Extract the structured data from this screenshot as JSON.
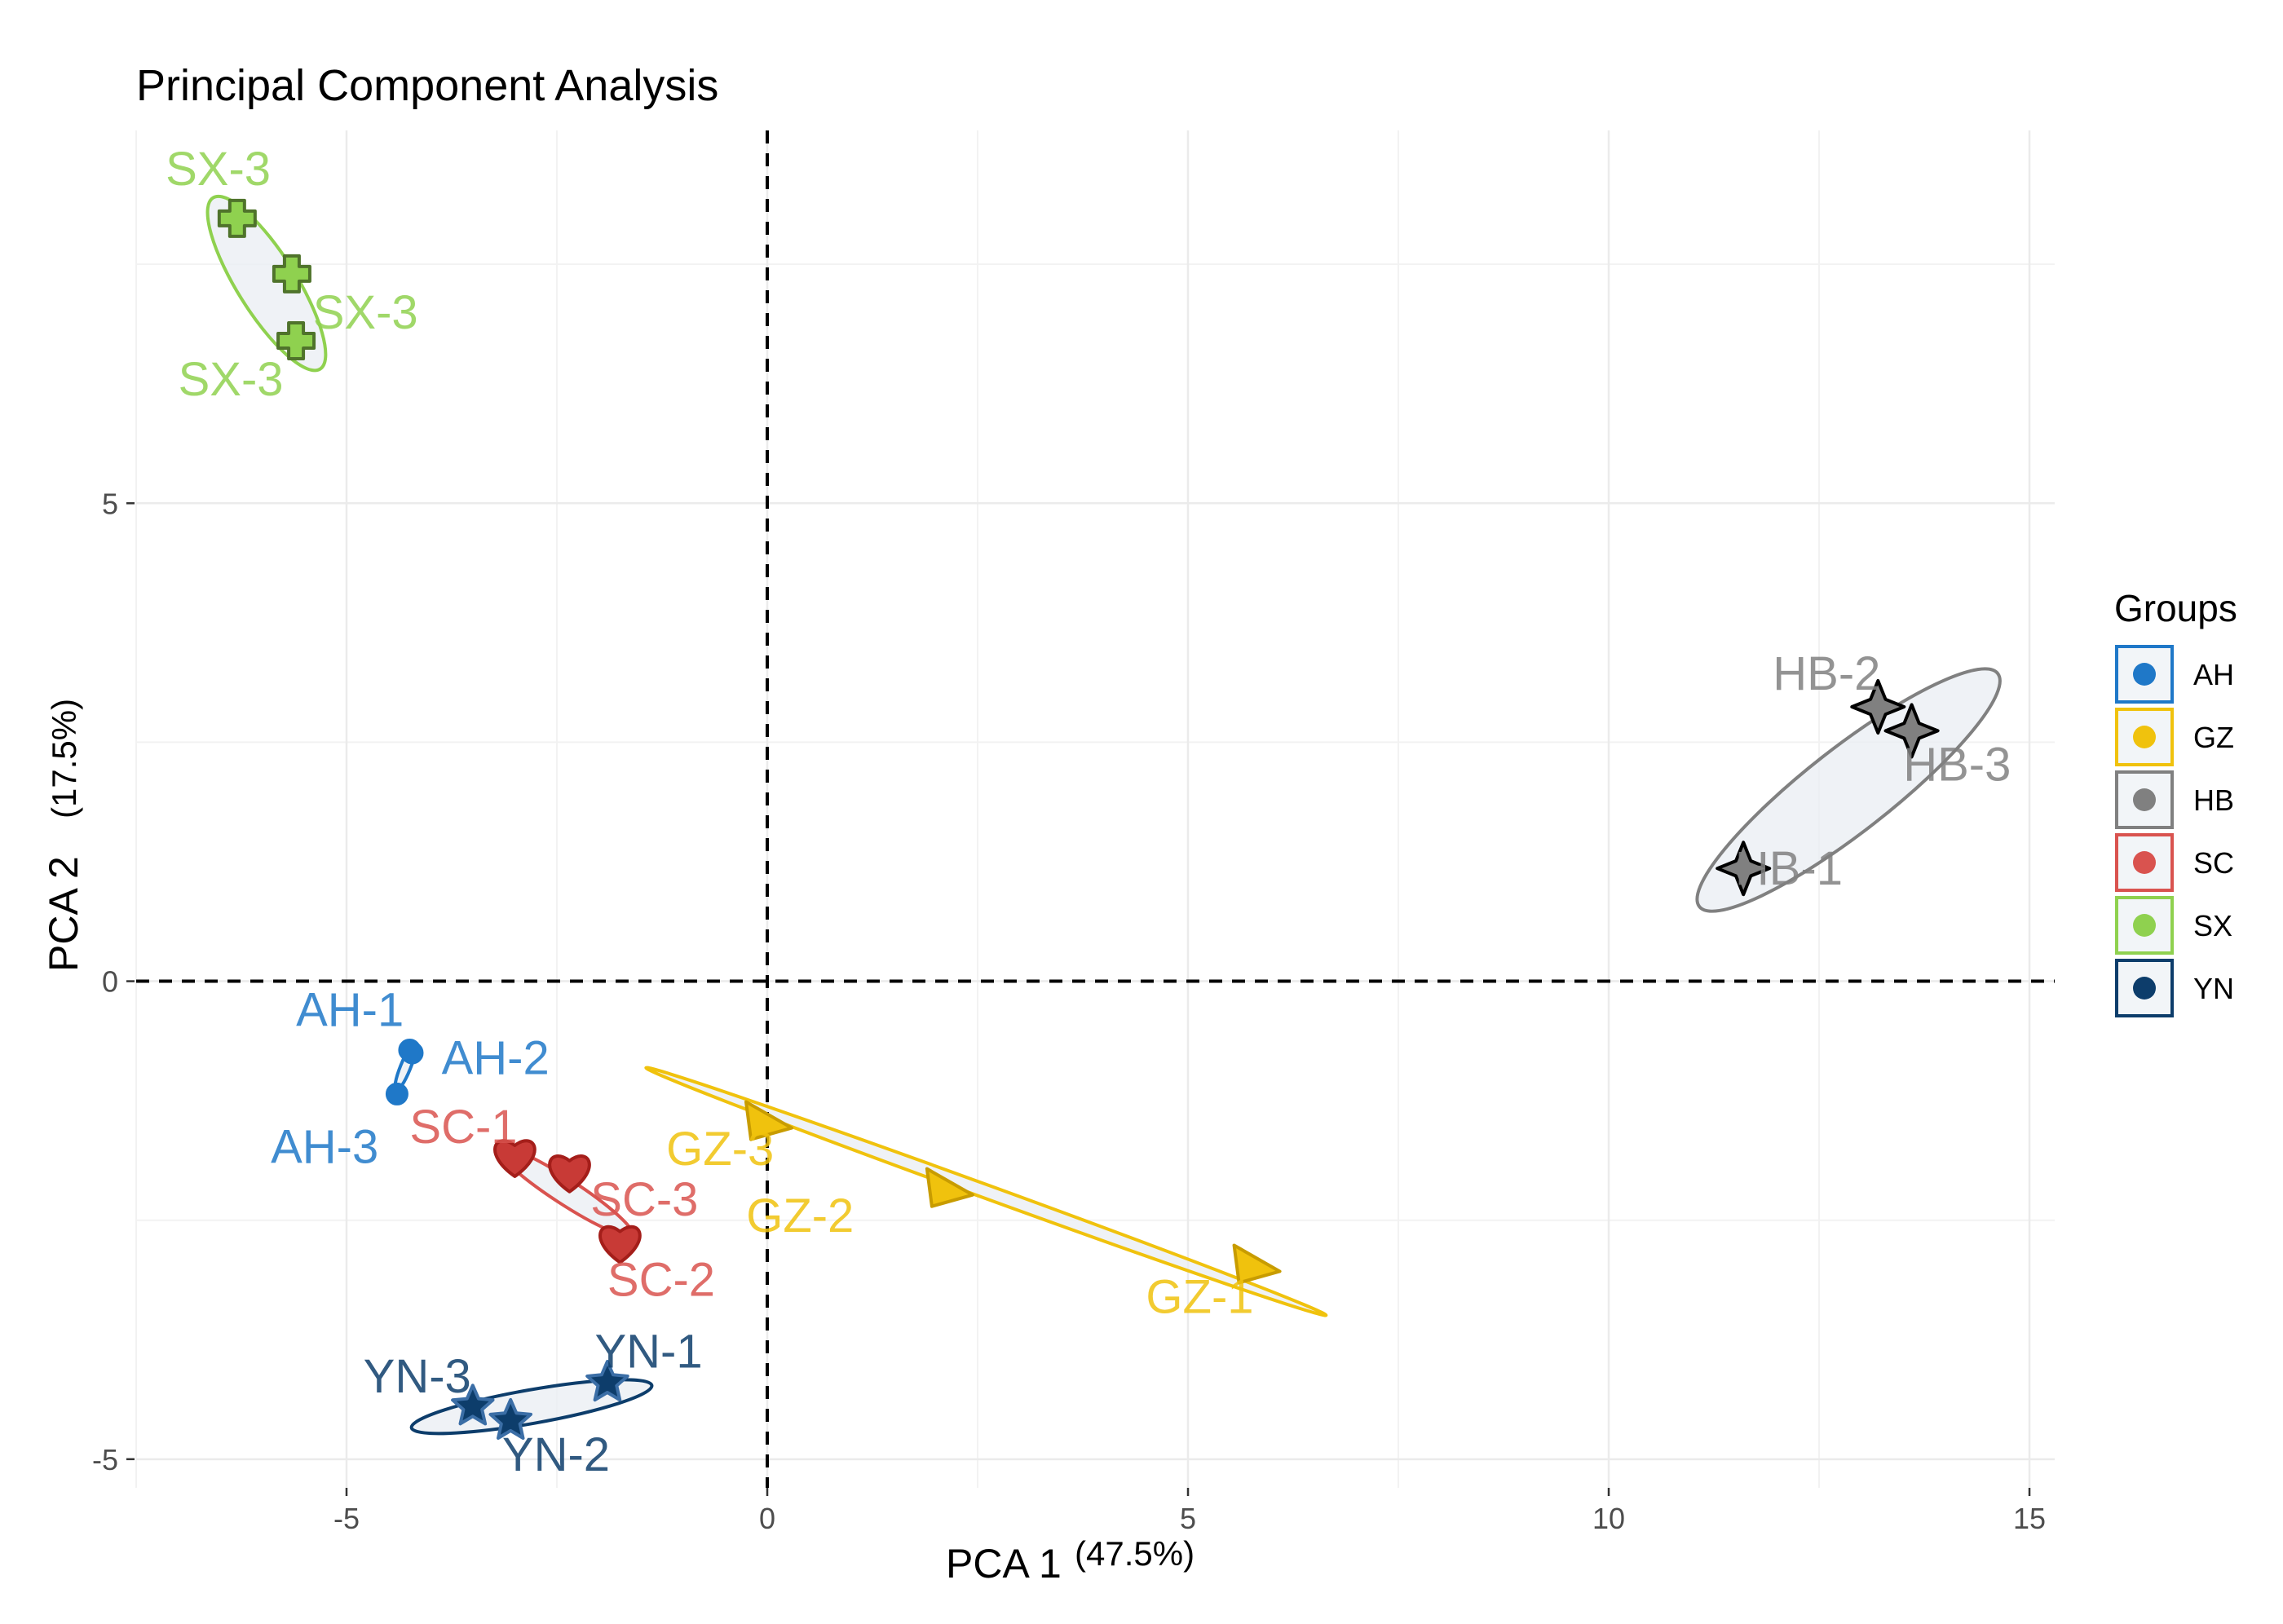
{
  "chart_data": {
    "type": "scatter",
    "title": "Principal Component Analysis",
    "xlabel": "PCA 1",
    "xlabel_pct": "(47.5%)",
    "ylabel": "PCA 2",
    "ylabel_pct": "(17.5%)",
    "xlim": [
      -7.5,
      15.3
    ],
    "ylim": [
      -5.3,
      8.9
    ],
    "xticks": [
      -5,
      0,
      5,
      10,
      15
    ],
    "xtick_labels": [
      "-5",
      "0",
      "5",
      "10",
      "15"
    ],
    "yticks": [
      -5,
      0,
      5
    ],
    "ytick_labels": [
      "-5",
      "0",
      "5"
    ],
    "reference_lines": {
      "x": 0,
      "y": 0,
      "style": "dashed"
    },
    "grid": true,
    "legend": {
      "title": "Groups",
      "position": "right"
    },
    "series": [
      {
        "name": "AH",
        "color": "#1f78c8",
        "marker": "circle",
        "points": [
          {
            "x": -4.25,
            "y": -0.72,
            "label": "AH-1"
          },
          {
            "x": -4.22,
            "y": -0.75,
            "label": "AH-2"
          },
          {
            "x": -4.4,
            "y": -1.18,
            "label": "AH-3"
          }
        ],
        "label_offsets": [
          [
            -1.35,
            0.42
          ],
          [
            0.35,
            -0.05
          ],
          [
            -1.5,
            -0.55
          ]
        ]
      },
      {
        "name": "GZ",
        "color": "#f0c20d",
        "marker": "triangle",
        "points": [
          {
            "x": 5.8,
            "y": -2.95,
            "label": "GZ-1"
          },
          {
            "x": 2.15,
            "y": -2.15,
            "label": "GZ-2"
          },
          {
            "x": 0.0,
            "y": -1.45,
            "label": "GZ-3"
          }
        ],
        "label_offsets": [
          [
            -1.3,
            -0.35
          ],
          [
            -2.4,
            -0.3
          ],
          [
            -1.2,
            -0.3
          ]
        ]
      },
      {
        "name": "HB",
        "color": "#808080",
        "marker": "diamond4",
        "points": [
          {
            "x": 11.6,
            "y": 1.18,
            "label": "HB-1"
          },
          {
            "x": 13.2,
            "y": 2.87,
            "label": "HB-2"
          },
          {
            "x": 13.6,
            "y": 2.62,
            "label": "HB-3"
          }
        ],
        "label_offsets": [
          [
            -0.1,
            0.0
          ],
          [
            -1.25,
            0.35
          ],
          [
            -0.1,
            -0.35
          ]
        ]
      },
      {
        "name": "SC",
        "color": "#d9534f",
        "marker": "heart",
        "points": [
          {
            "x": -3.0,
            "y": -1.82,
            "label": "SC-1"
          },
          {
            "x": -1.75,
            "y": -2.72,
            "label": "SC-2"
          },
          {
            "x": -2.35,
            "y": -1.98,
            "label": "SC-3"
          }
        ],
        "label_offsets": [
          [
            -1.25,
            0.3
          ],
          [
            -0.15,
            -0.4
          ],
          [
            0.25,
            -0.3
          ]
        ]
      },
      {
        "name": "SX",
        "color": "#8fd14f",
        "marker": "cross",
        "points": [
          {
            "x": -6.3,
            "y": 7.98,
            "label": "SX-3"
          },
          {
            "x": -5.65,
            "y": 7.4,
            "label": "SX-3"
          },
          {
            "x": -5.6,
            "y": 6.7,
            "label": "SX-3"
          }
        ],
        "label_offsets": [
          [
            -0.85,
            0.52
          ],
          [
            0.25,
            -0.4
          ],
          [
            -1.4,
            -0.4
          ]
        ]
      },
      {
        "name": "YN",
        "color": "#0d3d6b",
        "marker": "star",
        "points": [
          {
            "x": -1.9,
            "y": -4.2,
            "label": "YN-1"
          },
          {
            "x": -3.05,
            "y": -4.6,
            "label": "YN-2"
          },
          {
            "x": -3.5,
            "y": -4.45,
            "label": "YN-3"
          }
        ],
        "label_offsets": [
          [
            -0.15,
            0.33
          ],
          [
            -0.1,
            -0.35
          ],
          [
            -1.3,
            0.32
          ]
        ]
      }
    ],
    "ellipses": [
      {
        "group": "AH",
        "cx": -4.3,
        "cy": -0.9,
        "rx": 0.3,
        "ry": 0.06,
        "angle_deg": 68
      },
      {
        "group": "GZ",
        "cx": 2.6,
        "cy": -2.2,
        "rx": 4.3,
        "ry": 0.08,
        "angle_deg": -20
      },
      {
        "group": "HB",
        "cx": 12.85,
        "cy": 2.0,
        "rx": 2.25,
        "ry": 0.5,
        "angle_deg": 38
      },
      {
        "group": "SC",
        "cx": -2.4,
        "cy": -2.2,
        "rx": 0.95,
        "ry": 0.15,
        "angle_deg": -33
      },
      {
        "group": "SX",
        "cx": -5.95,
        "cy": 7.3,
        "rx": 1.2,
        "ry": 0.35,
        "angle_deg": -58
      },
      {
        "group": "YN",
        "cx": -2.8,
        "cy": -4.45,
        "rx": 1.45,
        "ry": 0.2,
        "angle_deg": 10
      }
    ]
  }
}
